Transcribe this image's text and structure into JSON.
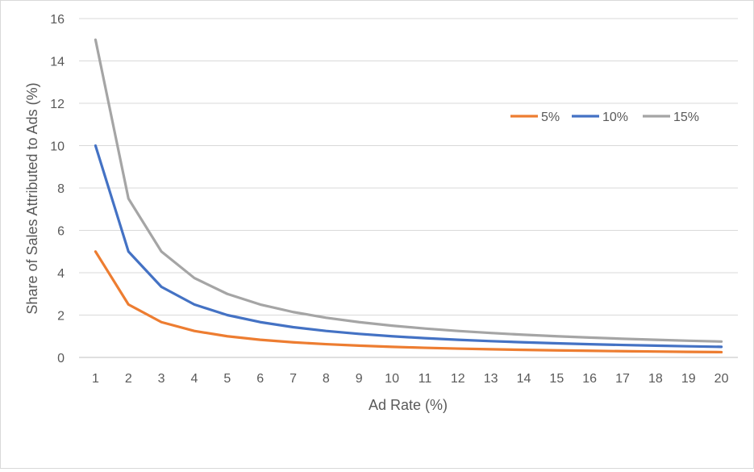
{
  "chart_data": {
    "type": "line",
    "title": "",
    "xlabel": "Ad Rate (%)",
    "ylabel": "Share of Sales Attributed to Ads (%)",
    "x": [
      1,
      2,
      3,
      4,
      5,
      6,
      7,
      8,
      9,
      10,
      11,
      12,
      13,
      14,
      15,
      16,
      17,
      18,
      19,
      20
    ],
    "ylim": [
      0,
      16
    ],
    "yticks": [
      0,
      2,
      4,
      6,
      8,
      10,
      12,
      14,
      16
    ],
    "grid": true,
    "legend_position": "top-right",
    "series": [
      {
        "name": "5%",
        "color": "#ed7d31",
        "values": [
          5,
          2.5,
          1.667,
          1.25,
          1,
          0.833,
          0.714,
          0.625,
          0.556,
          0.5,
          0.455,
          0.417,
          0.385,
          0.357,
          0.333,
          0.313,
          0.294,
          0.278,
          0.263,
          0.25
        ]
      },
      {
        "name": "10%",
        "color": "#4472c4",
        "values": [
          10,
          5,
          3.333,
          2.5,
          2,
          1.667,
          1.429,
          1.25,
          1.111,
          1,
          0.909,
          0.833,
          0.769,
          0.714,
          0.667,
          0.625,
          0.588,
          0.556,
          0.526,
          0.5
        ]
      },
      {
        "name": "15%",
        "color": "#a5a5a5",
        "values": [
          15,
          7.5,
          5,
          3.75,
          3,
          2.5,
          2.143,
          1.875,
          1.667,
          1.5,
          1.364,
          1.25,
          1.154,
          1.071,
          1,
          0.938,
          0.882,
          0.833,
          0.789,
          0.75
        ]
      }
    ]
  }
}
